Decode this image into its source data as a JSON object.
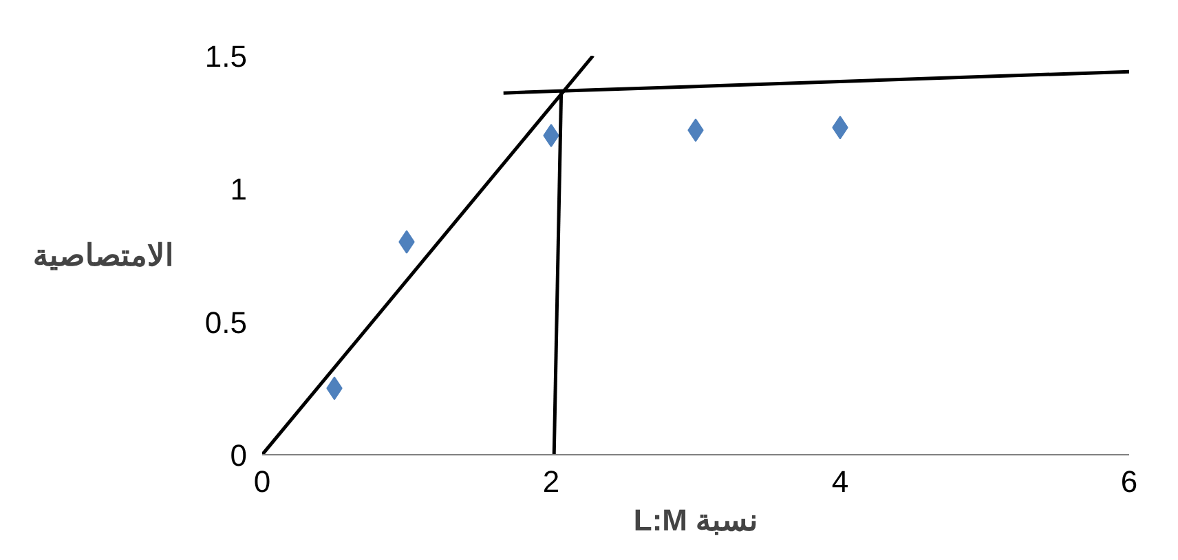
{
  "chart_data": {
    "type": "scatter",
    "xlabel": "L:M نسبة",
    "ylabel": "الامتصاصية",
    "xlim": [
      0,
      6
    ],
    "ylim": [
      0,
      1.5
    ],
    "xticks": [
      0,
      2,
      4,
      6
    ],
    "yticks": [
      0,
      0.5,
      1,
      1.5
    ],
    "grid": false,
    "series": [
      {
        "color": "#4f81bd",
        "marker": "diamond",
        "x": [
          0.5,
          1,
          2,
          3,
          4
        ],
        "values": [
          0.25,
          0.8,
          1.2,
          1.22,
          1.23
        ]
      },
      {
        "type": "line",
        "color": "#000000",
        "x": [
          0,
          2.29
        ],
        "values": [
          0,
          1.5
        ]
      },
      {
        "type": "line",
        "color": "#000000",
        "x": [
          1.67,
          6
        ],
        "values": [
          1.36,
          1.44
        ]
      },
      {
        "type": "line",
        "color": "#000000",
        "x": [
          2.07,
          2.02
        ],
        "values": [
          1.37,
          0
        ]
      }
    ]
  }
}
